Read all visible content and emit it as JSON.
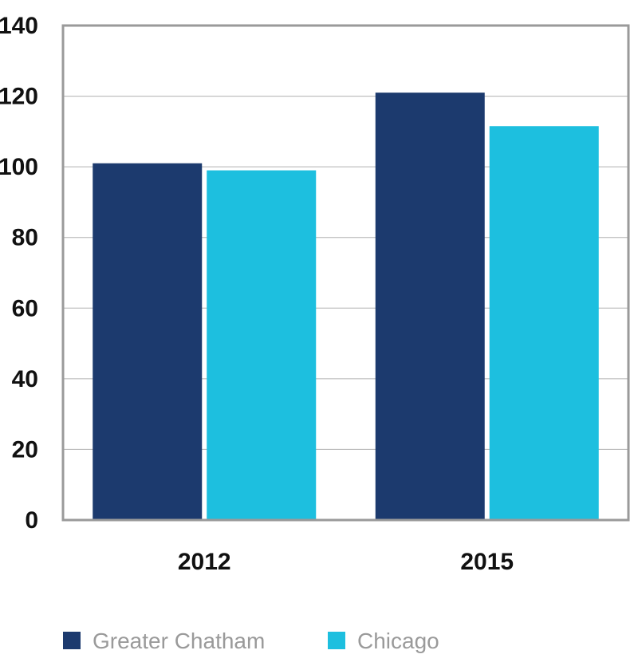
{
  "chart_data": {
    "type": "bar",
    "categories": [
      "2012",
      "2015"
    ],
    "series": [
      {
        "name": "Greater Chatham",
        "values": [
          101,
          121
        ],
        "color": "#1c3a6e"
      },
      {
        "name": "Chicago",
        "values": [
          99,
          111.5
        ],
        "color": "#1dbfdf"
      }
    ],
    "title": "",
    "xlabel": "",
    "ylabel": "",
    "ylim": [
      0,
      140
    ],
    "yticks": [
      0,
      20,
      40,
      60,
      80,
      100,
      120,
      140
    ],
    "grid": true,
    "legend_position": "bottom",
    "axis_color": "#9a9a9a",
    "grid_color": "#b0b0b0"
  }
}
